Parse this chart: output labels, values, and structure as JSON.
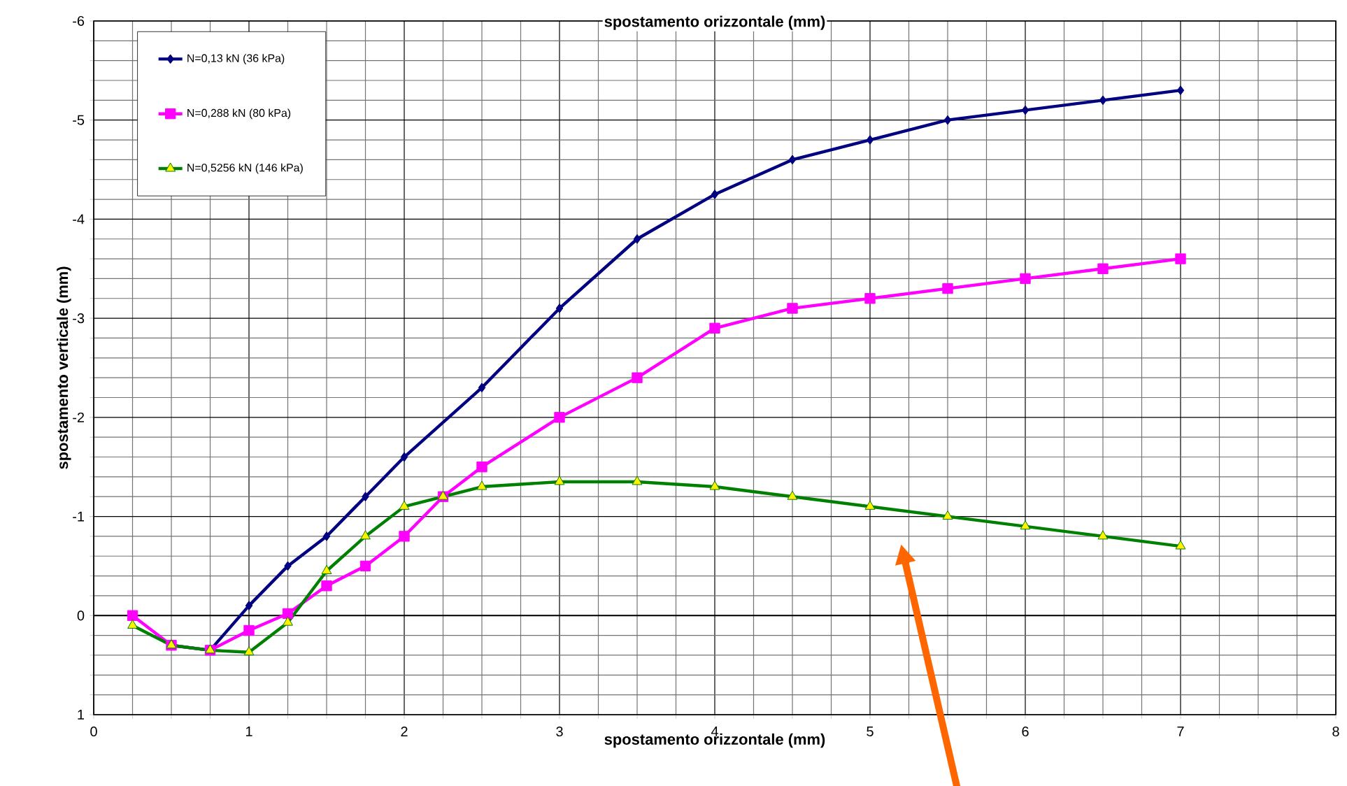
{
  "chart_data": {
    "type": "line",
    "title": "spostamento orizzontale (mm)",
    "xlabel": "spostamento orizzontale (mm)",
    "ylabel": "spostamento verticale (mm)",
    "xlim": [
      0,
      8
    ],
    "xticks": [
      0,
      1,
      2,
      3,
      4,
      5,
      6,
      7,
      8
    ],
    "ylim": [
      1,
      -6
    ],
    "yticks": [
      1,
      0,
      -1,
      -2,
      -3,
      -4,
      -5,
      -6
    ],
    "grid": true,
    "legend": "top left",
    "series": [
      {
        "name": "N=0,13 kN (36 kPa)",
        "color": "#000080",
        "marker": "diamond",
        "x": [
          0.5,
          0.75,
          1,
          1.25,
          1.5,
          1.75,
          2,
          2.5,
          3,
          3.5,
          4,
          4.5,
          5,
          5.5,
          6,
          6.5,
          7
        ],
        "values": [
          0.3,
          0.35,
          -0.1,
          -0.5,
          -0.8,
          -1.2,
          -1.6,
          -2.3,
          -3.1,
          -3.8,
          -4.25,
          -4.6,
          -4.8,
          -5.0,
          -5.1,
          -5.2,
          -5.3
        ]
      },
      {
        "name": "N=0,288 kN (80 kPa)",
        "color": "#ff00ff",
        "marker": "square",
        "x": [
          0.25,
          0.5,
          0.75,
          1,
          1.25,
          1.5,
          1.75,
          2,
          2.25,
          2.5,
          3,
          3.5,
          4,
          4.5,
          5,
          5.5,
          6,
          6.5,
          7
        ],
        "values": [
          0.0,
          0.3,
          0.35,
          0.15,
          -0.02,
          -0.3,
          -0.5,
          -0.8,
          -1.2,
          -1.5,
          -2.0,
          -2.4,
          -2.9,
          -3.1,
          -3.2,
          -3.3,
          -3.4,
          -3.5,
          -3.6
        ]
      },
      {
        "name": "N=0,5256 kN (146 kPa)",
        "color": "#008000",
        "marker": "triangle",
        "x": [
          0.25,
          0.5,
          0.75,
          1,
          1.25,
          1.5,
          1.75,
          2,
          2.25,
          2.5,
          3,
          3.5,
          4,
          4.5,
          5,
          5.5,
          6,
          6.5,
          7
        ],
        "values": [
          0.1,
          0.3,
          0.35,
          0.37,
          0.07,
          -0.45,
          -0.8,
          -1.1,
          -1.2,
          -1.3,
          -1.35,
          -1.35,
          -1.3,
          -1.2,
          -1.1,
          -1.0,
          -0.9,
          -0.8,
          -0.7
        ]
      }
    ]
  }
}
